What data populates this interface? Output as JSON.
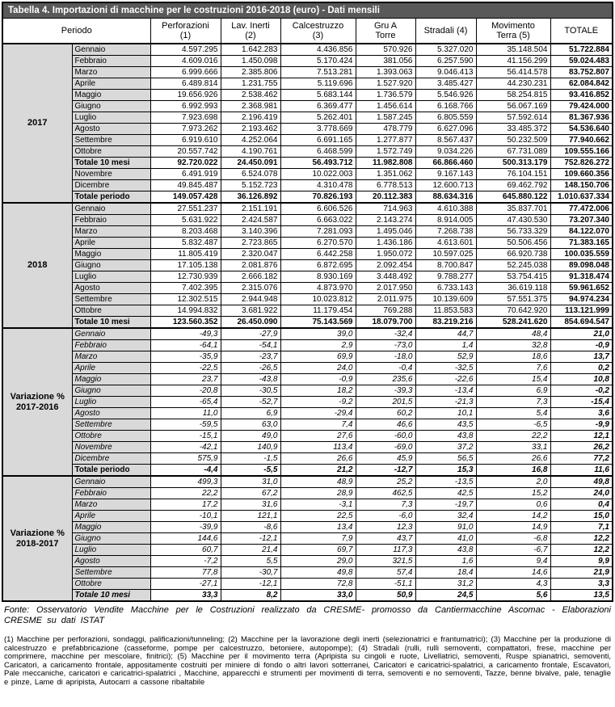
{
  "title": "Tabella 4. Importazioni di macchine per le costruzioni 2016-2018 (euro) - Dati mensili",
  "periodo_label": "Periodo",
  "columns": [
    "Perforazioni\n(1)",
    "Lav. Inerti\n(2)",
    "Calcestruzzo\n(3)",
    "Gru A\nTorre",
    "Stradali (4)",
    "Movimento\nTerra (5)",
    "TOTALE"
  ],
  "colors": {
    "title_bar": "#595959",
    "title_text": "#ffffff",
    "period_cell": "#d9d9d9",
    "border": "#000000"
  },
  "sections": [
    {
      "id": "2017",
      "label": "2017",
      "italic": false,
      "rows": [
        {
          "period": "Gennaio",
          "bold": false,
          "values": [
            "4.597.295",
            "1.642.283",
            "4.436.856",
            "570.926",
            "5.327.020",
            "35.148.504",
            "51.722.884"
          ]
        },
        {
          "period": "Febbraio",
          "bold": false,
          "values": [
            "4.609.016",
            "1.450.098",
            "5.170.424",
            "381.056",
            "6.257.590",
            "41.156.299",
            "59.024.483"
          ]
        },
        {
          "period": "Marzo",
          "bold": false,
          "values": [
            "6.999.666",
            "2.385.806",
            "7.513.281",
            "1.393.063",
            "9.046.413",
            "56.414.578",
            "83.752.807"
          ]
        },
        {
          "period": "Aprile",
          "bold": false,
          "values": [
            "6.489.814",
            "1.231.755",
            "5.119.696",
            "1.527.920",
            "3.485.427",
            "44.230.231",
            "62.084.842"
          ]
        },
        {
          "period": "Maggio",
          "bold": false,
          "values": [
            "19.656.926",
            "2.538.462",
            "5.683.144",
            "1.736.579",
            "5.546.926",
            "58.254.815",
            "93.416.852"
          ]
        },
        {
          "period": "Giugno",
          "bold": false,
          "values": [
            "6.992.993",
            "2.368.981",
            "6.369.477",
            "1.456.614",
            "6.168.766",
            "56.067.169",
            "79.424.000"
          ]
        },
        {
          "period": "Luglio",
          "bold": false,
          "values": [
            "7.923.698",
            "2.196.419",
            "5.262.401",
            "1.587.245",
            "6.805.559",
            "57.592.614",
            "81.367.936"
          ]
        },
        {
          "period": "Agosto",
          "bold": false,
          "values": [
            "7.973.262",
            "2.193.462",
            "3.778.669",
            "478.779",
            "6.627.096",
            "33.485.372",
            "54.536.640"
          ]
        },
        {
          "period": "Settembre",
          "bold": false,
          "values": [
            "6.919.610",
            "4.252.064",
            "6.691.165",
            "1.277.877",
            "8.567.437",
            "50.232.509",
            "77.940.662"
          ]
        },
        {
          "period": "Ottobre",
          "bold": false,
          "values": [
            "20.557.742",
            "4.190.761",
            "6.468.599",
            "1.572.749",
            "9.034.226",
            "67.731.089",
            "109.555.166"
          ]
        },
        {
          "period": "Totale 10 mesi",
          "bold": true,
          "values": [
            "92.720.022",
            "24.450.091",
            "56.493.712",
            "11.982.808",
            "66.866.460",
            "500.313.179",
            "752.826.272"
          ]
        },
        {
          "period": "Novembre",
          "bold": false,
          "values": [
            "6.491.919",
            "6.524.078",
            "10.022.003",
            "1.351.062",
            "9.167.143",
            "76.104.151",
            "109.660.356"
          ]
        },
        {
          "period": "Dicembre",
          "bold": false,
          "values": [
            "49.845.487",
            "5.152.723",
            "4.310.478",
            "6.778.513",
            "12.600.713",
            "69.462.792",
            "148.150.706"
          ]
        },
        {
          "period": "Totale periodo",
          "bold": true,
          "values": [
            "149.057.428",
            "36.126.892",
            "70.826.193",
            "20.112.383",
            "88.634.316",
            "645.880.122",
            "1.010.637.334"
          ]
        }
      ]
    },
    {
      "id": "2018",
      "label": "2018",
      "italic": false,
      "rows": [
        {
          "period": "Gennaio",
          "bold": false,
          "values": [
            "27.551.237",
            "2.151.191",
            "6.606.526",
            "714.963",
            "4.610.388",
            "35.837.701",
            "77.472.006"
          ]
        },
        {
          "period": "Febbraio",
          "bold": false,
          "values": [
            "5.631.922",
            "2.424.587",
            "6.663.022",
            "2.143.274",
            "8.914.005",
            "47.430.530",
            "73.207.340"
          ]
        },
        {
          "period": "Marzo",
          "bold": false,
          "values": [
            "8.203.468",
            "3.140.396",
            "7.281.093",
            "1.495.046",
            "7.268.738",
            "56.733.329",
            "84.122.070"
          ]
        },
        {
          "period": "Aprile",
          "bold": false,
          "values": [
            "5.832.487",
            "2.723.865",
            "6.270.570",
            "1.436.186",
            "4.613.601",
            "50.506.456",
            "71.383.165"
          ]
        },
        {
          "period": "Maggio",
          "bold": false,
          "values": [
            "11.805.419",
            "2.320.047",
            "6.442.258",
            "1.950.072",
            "10.597.025",
            "66.920.738",
            "100.035.559"
          ]
        },
        {
          "period": "Giugno",
          "bold": false,
          "values": [
            "17.105.138",
            "2.081.876",
            "6.872.695",
            "2.092.454",
            "8.700.847",
            "52.245.038",
            "89.098.048"
          ]
        },
        {
          "period": "Luglio",
          "bold": false,
          "values": [
            "12.730.939",
            "2.666.182",
            "8.930.169",
            "3.448.492",
            "9.788.277",
            "53.754.415",
            "91.318.474"
          ]
        },
        {
          "period": "Agosto",
          "bold": false,
          "values": [
            "7.402.395",
            "2.315.076",
            "4.873.970",
            "2.017.950",
            "6.733.143",
            "36.619.118",
            "59.961.652"
          ]
        },
        {
          "period": "Settembre",
          "bold": false,
          "values": [
            "12.302.515",
            "2.944.948",
            "10.023.812",
            "2.011.975",
            "10.139.609",
            "57.551.375",
            "94.974.234"
          ]
        },
        {
          "period": "Ottobre",
          "bold": false,
          "values": [
            "14.994.832",
            "3.681.922",
            "11.179.454",
            "769.288",
            "11.853.583",
            "70.642.920",
            "113.121.999"
          ]
        },
        {
          "period": "Totale 10 mesi",
          "bold": true,
          "values": [
            "123.560.352",
            "26.450.090",
            "75.143.569",
            "18.079.700",
            "83.219.216",
            "528.241.620",
            "854.694.547"
          ]
        }
      ]
    },
    {
      "id": "var-2017-2016",
      "label": "Variazione %\n2017-2016",
      "italic": true,
      "rows": [
        {
          "period": "Gennaio",
          "bold": false,
          "values": [
            "-49,3",
            "-27,9",
            "39,0",
            "-32,4",
            "44,7",
            "48,4",
            "21,0"
          ]
        },
        {
          "period": "Febbraio",
          "bold": false,
          "values": [
            "-64,1",
            "-54,1",
            "2,9",
            "-73,0",
            "1,4",
            "32,8",
            "-0,9"
          ]
        },
        {
          "period": "Marzo",
          "bold": false,
          "values": [
            "-35,9",
            "-23,7",
            "69,9",
            "-18,0",
            "52,9",
            "18,6",
            "13,7"
          ]
        },
        {
          "period": "Aprile",
          "bold": false,
          "values": [
            "-22,5",
            "-26,5",
            "24,0",
            "-0,4",
            "-32,5",
            "7,6",
            "0,2"
          ]
        },
        {
          "period": "Maggio",
          "bold": false,
          "values": [
            "23,7",
            "-43,8",
            "-0,9",
            "235,6",
            "-22,6",
            "15,4",
            "10,8"
          ]
        },
        {
          "period": "Giugno",
          "bold": false,
          "values": [
            "-20,8",
            "-30,5",
            "18,2",
            "-39,3",
            "-13,4",
            "6,9",
            "-0,2"
          ]
        },
        {
          "period": "Luglio",
          "bold": false,
          "values": [
            "-65,4",
            "-52,7",
            "-9,2",
            "201,5",
            "-21,3",
            "7,3",
            "-15,4"
          ]
        },
        {
          "period": "Agosto",
          "bold": false,
          "values": [
            "11,0",
            "6,9",
            "-29,4",
            "60,2",
            "10,1",
            "5,4",
            "3,6"
          ]
        },
        {
          "period": "Settembre",
          "bold": false,
          "values": [
            "-59,5",
            "63,0",
            "7,4",
            "46,6",
            "43,5",
            "-6,5",
            "-9,9"
          ]
        },
        {
          "period": "Ottobre",
          "bold": false,
          "values": [
            "-15,1",
            "49,0",
            "27,6",
            "-60,0",
            "43,8",
            "22,2",
            "12,1"
          ]
        },
        {
          "period": "Novembre",
          "bold": false,
          "values": [
            "-42,1",
            "140,9",
            "113,4",
            "-69,0",
            "37,2",
            "33,1",
            "26,2"
          ]
        },
        {
          "period": "Dicembre",
          "bold": false,
          "values": [
            "575,9",
            "-1,5",
            "26,6",
            "45,9",
            "56,5",
            "26,6",
            "77,2"
          ]
        },
        {
          "period": "Totale periodo",
          "bold": true,
          "upright": true,
          "values": [
            "-4,4",
            "-5,5",
            "21,2",
            "-12,7",
            "15,3",
            "16,8",
            "11,6"
          ]
        }
      ]
    },
    {
      "id": "var-2018-2017",
      "label": "Variazione %\n2018-2017",
      "italic": true,
      "rows": [
        {
          "period": "Gennaio",
          "bold": false,
          "values": [
            "499,3",
            "31,0",
            "48,9",
            "25,2",
            "-13,5",
            "2,0",
            "49,8"
          ]
        },
        {
          "period": "Febbraio",
          "bold": false,
          "values": [
            "22,2",
            "67,2",
            "28,9",
            "462,5",
            "42,5",
            "15,2",
            "24,0"
          ]
        },
        {
          "period": "Marzo",
          "bold": false,
          "values": [
            "17,2",
            "31,6",
            "-3,1",
            "7,3",
            "-19,7",
            "0,6",
            "0,4"
          ]
        },
        {
          "period": "Aprile",
          "bold": false,
          "values": [
            "-10,1",
            "121,1",
            "22,5",
            "-6,0",
            "32,4",
            "14,2",
            "15,0"
          ]
        },
        {
          "period": "Maggio",
          "bold": false,
          "values": [
            "-39,9",
            "-8,6",
            "13,4",
            "12,3",
            "91,0",
            "14,9",
            "7,1"
          ]
        },
        {
          "period": "Giugno",
          "bold": false,
          "values": [
            "144,6",
            "-12,1",
            "7,9",
            "43,7",
            "41,0",
            "-6,8",
            "12,2"
          ]
        },
        {
          "period": "Luglio",
          "bold": false,
          "values": [
            "60,7",
            "21,4",
            "69,7",
            "117,3",
            "43,8",
            "-6,7",
            "12,2"
          ]
        },
        {
          "period": "Agosto",
          "bold": false,
          "values": [
            "-7,2",
            "5,5",
            "29,0",
            "321,5",
            "1,6",
            "9,4",
            "9,9"
          ]
        },
        {
          "period": "Settembre",
          "bold": false,
          "values": [
            "77,8",
            "-30,7",
            "49,8",
            "57,4",
            "18,4",
            "14,6",
            "21,9"
          ]
        },
        {
          "period": "Ottobre",
          "bold": false,
          "values": [
            "-27,1",
            "-12,1",
            "72,8",
            "-51,1",
            "31,2",
            "4,3",
            "3,3"
          ]
        },
        {
          "period": "Totale 10 mesi",
          "bold": true,
          "values": [
            "33,3",
            "8,2",
            "33,0",
            "50,9",
            "24,5",
            "5,6",
            "13,5"
          ]
        }
      ]
    }
  ],
  "fonte": "Fonte: Osservatorio Vendite Macchine per le Costruzioni realizzato da CRESME- promosso da Cantiermacchine Ascomac - Elaborazioni CRESME su dati ISTAT",
  "footnotes": "(1) Macchine per perforazioni, sondaggi, palificazioni/tunneling; (2) Macchine per la lavorazione degli inerti (selezionatrici e frantumatrici); (3) Macchine per la produzione di calcestruzzo e prefabbricazione (casseforme, pompe per calcestruzzo, betoniere, autopompe); (4) Stradali (rulli, rulli semoventi, compattatori, frese, macchine per comprimere, macchine per mescolare, finitrici); (5) Macchine per il movimento terra (Apripista su cingoli e ruote, Livellatrici, semoventi, Ruspe spianatrici, semoventi, Caricatori, a caricamento frontale, appositamente costruiti per miniere di fondo o altri lavori sotterranei, Caricatori e caricatrici-spalatrici, a caricamento frontale, Escavatori, Pale meccaniche, caricatori e caricatrici-spalatrici , Macchine, apparecchi e strumenti per movimenti di terra, semoventi e no semoventi, Tazze, benne bivalve, pale, tenaglie e pinze, Lame di apripista, Autocarri a cassone ribaltabile"
}
